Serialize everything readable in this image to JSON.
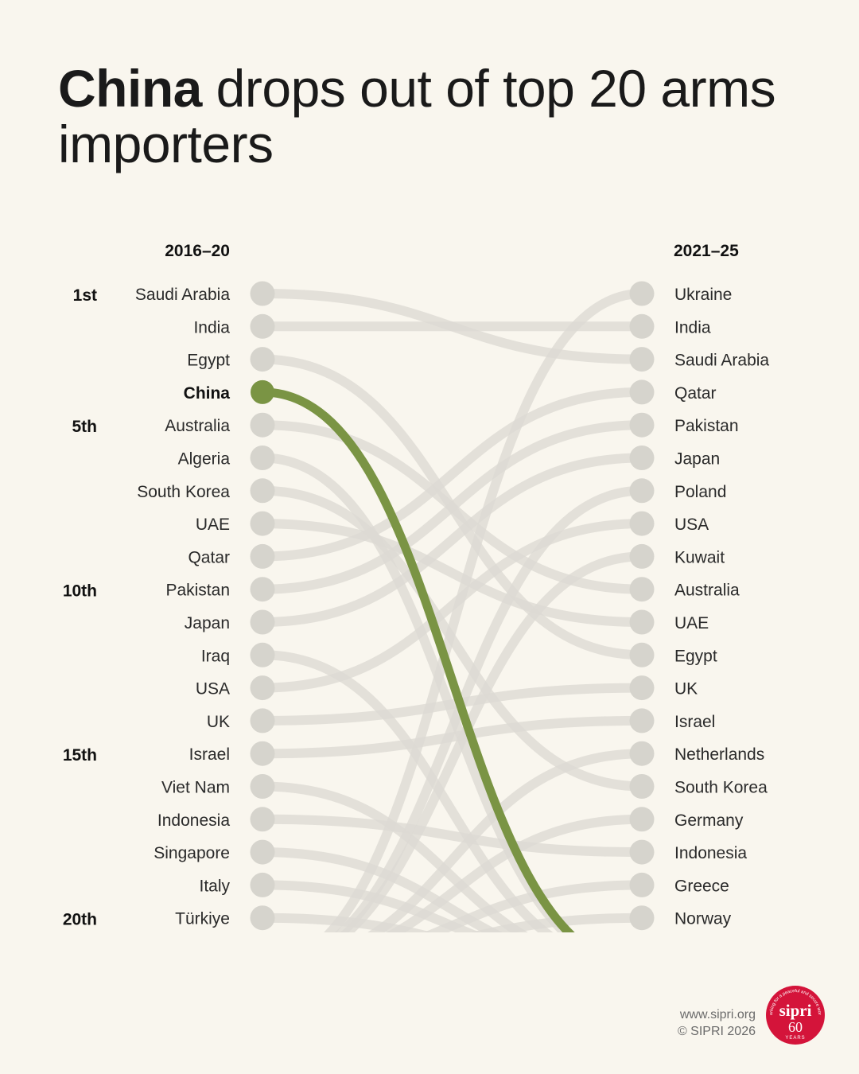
{
  "title": {
    "bold": "China",
    "rest": " drops out of top 20 arms importers"
  },
  "chart_data": {
    "type": "slope-ranking",
    "title": "China drops out of top 20 arms importers",
    "left_header": "2016–20",
    "right_header": "2021–25",
    "rank_markers": [
      {
        "rank": 1,
        "label": "1st"
      },
      {
        "rank": 5,
        "label": "5th"
      },
      {
        "rank": 10,
        "label": "10th"
      },
      {
        "rank": 15,
        "label": "15th"
      },
      {
        "rank": 20,
        "label": "20th"
      }
    ],
    "left": [
      "Saudi Arabia",
      "India",
      "Egypt",
      "China",
      "Australia",
      "Algeria",
      "South Korea",
      "UAE",
      "Qatar",
      "Pakistan",
      "Japan",
      "Iraq",
      "USA",
      "UK",
      "Israel",
      "Viet Nam",
      "Indonesia",
      "Singapore",
      "Italy",
      "Türkiye"
    ],
    "right": [
      "Ukraine",
      "India",
      "Saudi Arabia",
      "Qatar",
      "Pakistan",
      "Japan",
      "Poland",
      "USA",
      "Kuwait",
      "Australia",
      "UAE",
      "Egypt",
      "UK",
      "Israel",
      "Netherlands",
      "South Korea",
      "Germany",
      "Indonesia",
      "Greece",
      "Norway"
    ],
    "highlight": "China",
    "colors": {
      "highlight": "#7a9444",
      "line": "#dcdad3",
      "dot": "#d6d4cd",
      "background": "#f9f6ee"
    }
  },
  "footer": {
    "url": "www.sipri.org",
    "copyright": "© SIPRI 2026"
  },
  "logo": {
    "name": "sipri",
    "years": "60",
    "years_label": "YEARS",
    "tagline": "working for a peaceful and secure world",
    "color": "#d4143a"
  }
}
